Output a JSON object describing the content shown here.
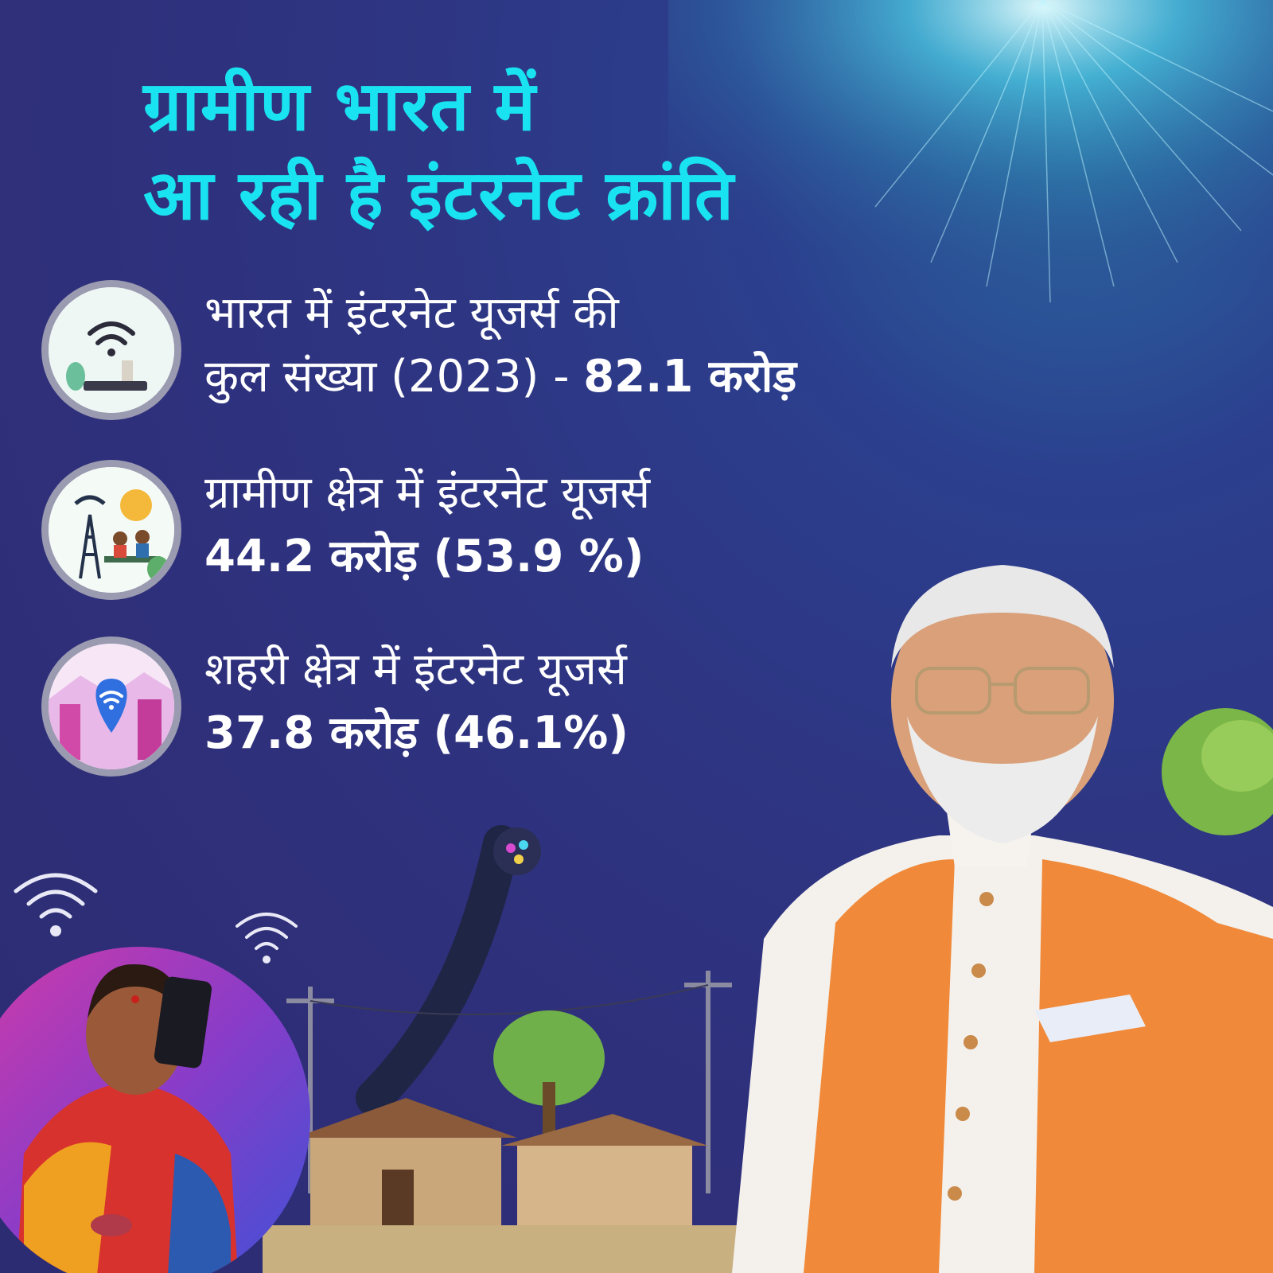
{
  "headline": {
    "line1": "ग्रामीण भारत में",
    "line2": "आ रही है इंटरनेट क्रांति"
  },
  "stats": [
    {
      "icon": "wifi-router-icon",
      "line1": "भारत में इंटरनेट यूजर्स की",
      "line2_prefix": "कुल संख्या (2023)  - ",
      "line2_value": "82.1 करोड़"
    },
    {
      "icon": "rural-tower-icon",
      "line1": "ग्रामीण क्षेत्र में इंटरनेट यूजर्स",
      "line2_value": "44.2 करोड़ (53.9 %)"
    },
    {
      "icon": "urban-wifi-icon",
      "line1": "शहरी क्षेत्र में इंटरनेट यूजर्स",
      "line2_value": "37.8 करोड़ (46.1%)"
    }
  ],
  "colors": {
    "background": "#2e3582",
    "headline": "#19e3f0",
    "text": "#ffffff",
    "vest": "#f08a3a"
  }
}
